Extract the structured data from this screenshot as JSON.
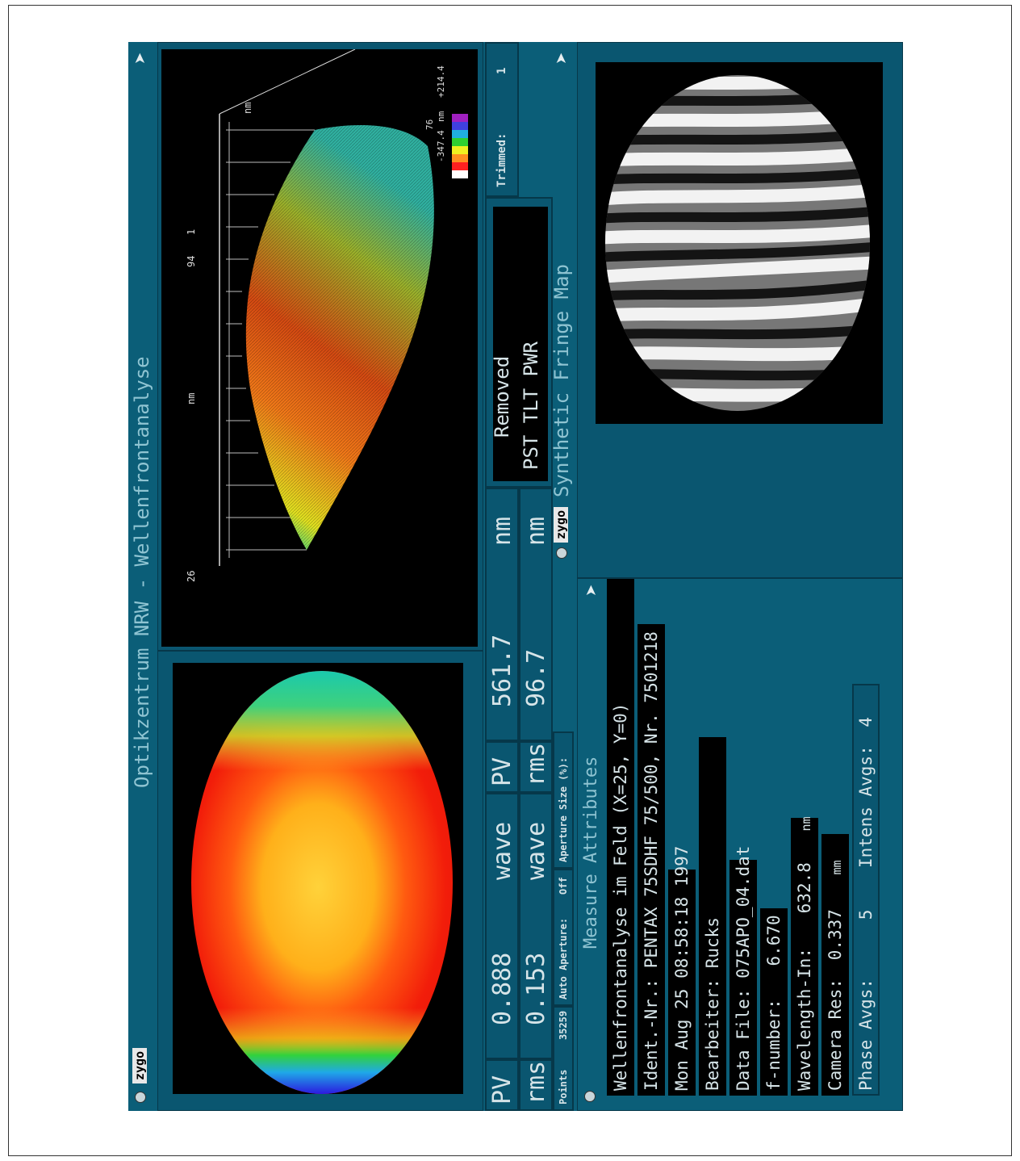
{
  "window": {
    "title": "Optikzentrum NRW - Wellenfrontanalyse",
    "brand": "zygo"
  },
  "stats": {
    "pv_label": "PV",
    "pv_wave": "0.888",
    "pv_wave_unit": "wave",
    "pv_nm": "561.7",
    "pv_nm_unit": "nm",
    "rms_label": "rms",
    "rms_wave": "0.153",
    "rms_wave_unit": "wave",
    "rms_nm": "96.7",
    "rms_nm_unit": "nm",
    "points_label": "Points",
    "points_value": "35259",
    "auto_aperture_label": "Auto Aperture:",
    "auto_aperture_value": "Off",
    "aperture_size_label": "Aperture Size (%):"
  },
  "removed": {
    "label": "Removed",
    "terms": "PST TLT PWR",
    "trimmed_label": "Trimmed:",
    "trimmed_value": "1"
  },
  "plot3d": {
    "scale_top": "+214.4",
    "scale_unit": "nm",
    "scale_bottom": "-347.4",
    "scale_extra": "76",
    "axis_nm_right": "nm",
    "axis_nm_bottom": "nm",
    "tick_26": "26",
    "tick_94": "94",
    "tick_1": "1"
  },
  "fringe": {
    "title": "Synthetic Fringe Map",
    "brand": "zygo"
  },
  "attributes": {
    "title": "Measure Attributes",
    "line1": "Wellenfrontanalyse im Feld (X=25, Y=0)",
    "line2": "Ident.-Nr.: PENTAX 75SDHF 75/500, Nr. 7501218",
    "line3": "Mon Aug 25 08:58:18 1997",
    "bearbeiter": "Bearbeiter: Rucks",
    "data_file": "Data File: 075APO_04.dat",
    "fnumber_label": "f-number:",
    "fnumber_value": "6.670",
    "wavelength_label": "Wavelength-In:",
    "wavelength_value": "632.8",
    "wavelength_unit": "nm",
    "camres_label": "Camera Res:",
    "camres_value": "0.337",
    "camres_unit": "mm",
    "phase_label": "Phase Avgs:",
    "phase_value": "5",
    "intens_label": "Intens Avgs:",
    "intens_value": "4"
  },
  "colors": {
    "panel": "#0a5670",
    "background": "#0b5e78",
    "text": "#d6e4e8",
    "title_text": "#8fc4d2"
  }
}
